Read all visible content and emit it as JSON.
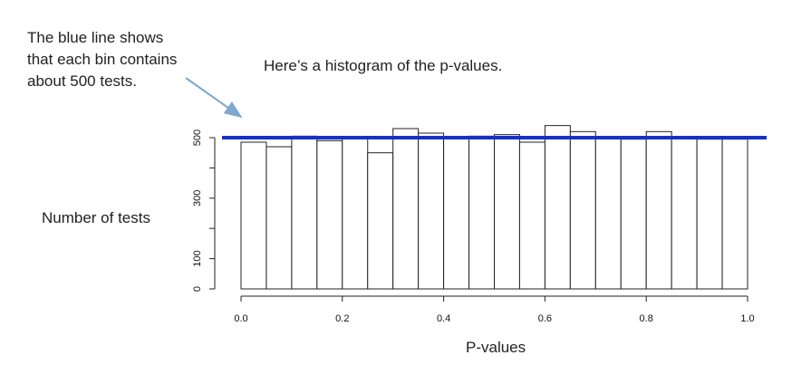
{
  "annotation": "The blue line shows\nthat each bin contains\nabout 500 tests.",
  "subtitle": "Here’s a histogram of the p-values.",
  "colors": {
    "reference_line": "#1432c8",
    "arrow": "#7fa7cf",
    "bar_stroke": "#222222",
    "bar_fill": "#ffffff"
  },
  "chart_data": {
    "type": "bar",
    "title": "Here’s a histogram of the p-values.",
    "xlabel": "P-values",
    "ylabel": "Number of tests",
    "bin_edges": [
      0.0,
      0.05,
      0.1,
      0.15,
      0.2,
      0.25,
      0.3,
      0.35,
      0.4,
      0.45,
      0.5,
      0.55,
      0.6,
      0.65,
      0.7,
      0.75,
      0.8,
      0.85,
      0.9,
      0.95,
      1.0
    ],
    "values": [
      485,
      470,
      505,
      490,
      500,
      450,
      530,
      515,
      500,
      505,
      510,
      485,
      540,
      520,
      500,
      495,
      520,
      500,
      495,
      495
    ],
    "reference_line": {
      "y": 500,
      "label": "about 500 tests"
    },
    "xlim": [
      0,
      1
    ],
    "ylim": [
      0,
      540
    ],
    "x_ticks": [
      0.0,
      0.2,
      0.4,
      0.6,
      0.8,
      1.0
    ],
    "x_tick_labels": [
      "0.0",
      "0.2",
      "0.4",
      "0.6",
      "0.8",
      "1.0"
    ],
    "y_ticks": [
      0,
      100,
      200,
      300,
      400,
      500
    ],
    "y_tick_labels": [
      "0",
      "100",
      "",
      "300",
      "",
      "500"
    ],
    "grid": false,
    "legend": "none"
  }
}
